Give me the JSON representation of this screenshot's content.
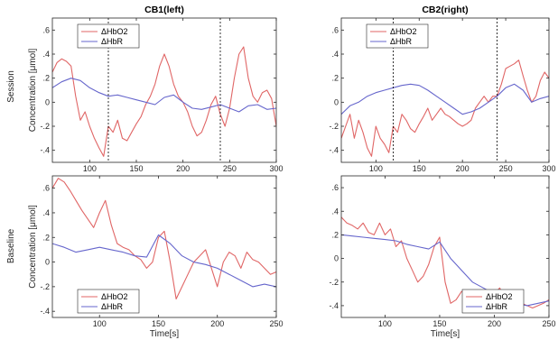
{
  "figure": {
    "row_labels": [
      "Session",
      "Baseline"
    ],
    "colors": {
      "hbo2": "#e06666",
      "hbr": "#6666cc",
      "vline": "#000000",
      "axes": "#262626"
    }
  },
  "chart_data": [
    {
      "type": "line",
      "panel": "top-left",
      "title": "CB1(left)",
      "xlabel": "",
      "ylabel": "Concentration [μmol]",
      "xlim": [
        60,
        300
      ],
      "ylim": [
        -0.5,
        0.7
      ],
      "xticks": [
        100,
        150,
        200,
        250,
        300
      ],
      "yticks": [
        -0.4,
        -0.2,
        0,
        0.2,
        0.4,
        0.6
      ],
      "vlines": [
        120,
        240
      ],
      "legend": {
        "position": "top-left",
        "entries": [
          "ΔHbO2",
          "ΔHbR"
        ]
      },
      "series": [
        {
          "name": "ΔHbO2",
          "color": "#e06666",
          "x": [
            60,
            65,
            70,
            75,
            80,
            85,
            90,
            95,
            100,
            105,
            110,
            115,
            120,
            125,
            130,
            135,
            140,
            145,
            150,
            155,
            160,
            165,
            170,
            175,
            180,
            185,
            190,
            195,
            200,
            205,
            210,
            215,
            220,
            225,
            230,
            235,
            240,
            245,
            250,
            255,
            260,
            265,
            270,
            275,
            280,
            285,
            290,
            295,
            300
          ],
          "y": [
            0.25,
            0.33,
            0.36,
            0.34,
            0.3,
            0.05,
            -0.15,
            -0.08,
            -0.2,
            -0.3,
            -0.38,
            -0.45,
            -0.2,
            -0.25,
            -0.15,
            -0.3,
            -0.32,
            -0.25,
            -0.18,
            -0.12,
            -0.02,
            0.05,
            0.15,
            0.3,
            0.4,
            0.3,
            0.15,
            0.05,
            0.0,
            -0.08,
            -0.2,
            -0.28,
            -0.25,
            -0.15,
            -0.02,
            0.05,
            -0.1,
            -0.2,
            -0.05,
            0.2,
            0.4,
            0.46,
            0.2,
            0.05,
            0.0,
            0.08,
            0.1,
            0.03,
            -0.2
          ]
        },
        {
          "name": "ΔHbR",
          "color": "#6666cc",
          "x": [
            60,
            70,
            80,
            90,
            100,
            110,
            120,
            130,
            140,
            150,
            160,
            170,
            180,
            190,
            200,
            210,
            220,
            230,
            240,
            250,
            260,
            270,
            280,
            290,
            300
          ],
          "y": [
            0.12,
            0.17,
            0.2,
            0.18,
            0.12,
            0.08,
            0.05,
            0.06,
            0.04,
            0.02,
            0.0,
            -0.02,
            0.04,
            0.06,
            0.0,
            -0.05,
            -0.06,
            -0.04,
            -0.02,
            -0.05,
            -0.08,
            -0.03,
            -0.02,
            -0.06,
            -0.05
          ]
        }
      ]
    },
    {
      "type": "line",
      "panel": "top-right",
      "title": "CB2(right)",
      "xlabel": "",
      "ylabel": "",
      "xlim": [
        60,
        300
      ],
      "ylim": [
        -0.5,
        0.7
      ],
      "xticks": [
        100,
        150,
        200,
        250,
        300
      ],
      "yticks": [
        -0.4,
        -0.2,
        0,
        0.2,
        0.4,
        0.6
      ],
      "vlines": [
        120,
        240
      ],
      "legend": {
        "position": "top-left",
        "entries": [
          "ΔHbO2",
          "ΔHbR"
        ]
      },
      "series": [
        {
          "name": "ΔHbO2",
          "color": "#e06666",
          "x": [
            60,
            65,
            70,
            75,
            80,
            85,
            90,
            95,
            100,
            105,
            110,
            115,
            120,
            125,
            130,
            135,
            140,
            145,
            150,
            155,
            160,
            165,
            170,
            175,
            180,
            185,
            190,
            195,
            200,
            205,
            210,
            215,
            220,
            225,
            230,
            235,
            240,
            245,
            250,
            255,
            260,
            265,
            270,
            275,
            280,
            285,
            290,
            295,
            300
          ],
          "y": [
            -0.3,
            -0.2,
            -0.1,
            -0.3,
            -0.15,
            -0.25,
            -0.38,
            -0.45,
            -0.2,
            -0.3,
            -0.35,
            -0.42,
            -0.2,
            -0.25,
            -0.1,
            -0.15,
            -0.22,
            -0.25,
            -0.18,
            -0.12,
            -0.05,
            -0.15,
            -0.1,
            -0.05,
            -0.1,
            -0.12,
            -0.15,
            -0.18,
            -0.2,
            -0.18,
            -0.15,
            -0.05,
            0.0,
            0.05,
            0.0,
            0.05,
            0.05,
            0.15,
            0.28,
            0.3,
            0.32,
            0.35,
            0.22,
            0.1,
            0.0,
            0.05,
            0.18,
            0.25,
            0.2
          ]
        },
        {
          "name": "ΔHbR",
          "color": "#6666cc",
          "x": [
            60,
            70,
            80,
            90,
            100,
            110,
            120,
            130,
            140,
            150,
            160,
            170,
            180,
            190,
            200,
            210,
            220,
            230,
            240,
            250,
            260,
            270,
            280,
            290,
            300
          ],
          "y": [
            -0.1,
            -0.03,
            0.0,
            0.05,
            0.08,
            0.1,
            0.12,
            0.14,
            0.15,
            0.14,
            0.1,
            0.05,
            0.0,
            -0.05,
            -0.1,
            -0.08,
            -0.05,
            0.0,
            0.05,
            0.12,
            0.15,
            0.1,
            0.0,
            0.03,
            0.05
          ]
        }
      ]
    },
    {
      "type": "line",
      "panel": "bottom-left",
      "title": "",
      "xlabel": "Time[s]",
      "ylabel": "Concentration [μmol]",
      "xlim": [
        60,
        250
      ],
      "ylim": [
        -0.45,
        0.7
      ],
      "xticks": [
        100,
        150,
        200,
        250
      ],
      "yticks": [
        -0.4,
        -0.2,
        0,
        0.2,
        0.4,
        0.6
      ],
      "vlines": [],
      "legend": {
        "position": "bottom-left",
        "entries": [
          "ΔHbO2",
          "ΔHbR"
        ]
      },
      "series": [
        {
          "name": "ΔHbO2",
          "color": "#e06666",
          "x": [
            60,
            65,
            70,
            75,
            80,
            85,
            90,
            95,
            100,
            105,
            110,
            115,
            120,
            125,
            130,
            135,
            140,
            145,
            150,
            155,
            160,
            165,
            170,
            175,
            180,
            185,
            190,
            195,
            200,
            205,
            210,
            215,
            220,
            225,
            230,
            235,
            240,
            245,
            250
          ],
          "y": [
            0.6,
            0.68,
            0.65,
            0.58,
            0.5,
            0.42,
            0.35,
            0.28,
            0.4,
            0.5,
            0.3,
            0.15,
            0.12,
            0.1,
            0.05,
            0.02,
            -0.05,
            0.0,
            0.2,
            0.25,
            0.0,
            -0.3,
            -0.2,
            -0.1,
            0.0,
            0.05,
            0.1,
            -0.05,
            -0.2,
            0.0,
            0.08,
            0.05,
            -0.05,
            0.08,
            0.02,
            0.0,
            -0.05,
            -0.1,
            -0.08
          ]
        },
        {
          "name": "ΔHbR",
          "color": "#6666cc",
          "x": [
            60,
            70,
            80,
            90,
            100,
            110,
            120,
            130,
            140,
            150,
            160,
            170,
            180,
            190,
            200,
            210,
            220,
            230,
            240,
            250
          ],
          "y": [
            0.15,
            0.12,
            0.08,
            0.1,
            0.12,
            0.1,
            0.08,
            0.05,
            0.04,
            0.22,
            0.15,
            0.05,
            0.0,
            -0.02,
            -0.05,
            -0.1,
            -0.15,
            -0.2,
            -0.18,
            -0.2
          ]
        }
      ]
    },
    {
      "type": "line",
      "panel": "bottom-right",
      "title": "",
      "xlabel": "Time[s]",
      "ylabel": "",
      "xlim": [
        60,
        250
      ],
      "ylim": [
        -0.5,
        0.7
      ],
      "xticks": [
        100,
        150,
        200,
        250
      ],
      "yticks": [
        -0.4,
        -0.2,
        0,
        0.2,
        0.4,
        0.6
      ],
      "vlines": [],
      "legend": {
        "position": "bottom-right",
        "entries": [
          "ΔHbO2",
          "ΔHbR"
        ]
      },
      "series": [
        {
          "name": "ΔHbO2",
          "color": "#e06666",
          "x": [
            60,
            65,
            70,
            75,
            80,
            85,
            90,
            95,
            100,
            105,
            110,
            115,
            120,
            125,
            130,
            135,
            140,
            145,
            150,
            155,
            160,
            165,
            170,
            175,
            180,
            185,
            190,
            195,
            200,
            205,
            210,
            215,
            220,
            225,
            230,
            235,
            240,
            245,
            250
          ],
          "y": [
            0.35,
            0.3,
            0.28,
            0.25,
            0.3,
            0.22,
            0.2,
            0.3,
            0.2,
            0.25,
            0.1,
            0.15,
            0.0,
            -0.1,
            -0.2,
            -0.15,
            -0.05,
            0.1,
            0.18,
            -0.2,
            -0.38,
            -0.35,
            -0.28,
            -0.3,
            -0.35,
            -0.4,
            -0.45,
            -0.4,
            -0.3,
            -0.25,
            -0.35,
            -0.4,
            -0.42,
            -0.38,
            -0.4,
            -0.42,
            -0.4,
            -0.38,
            -0.35
          ]
        },
        {
          "name": "ΔHbR",
          "color": "#6666cc",
          "x": [
            60,
            70,
            80,
            90,
            100,
            110,
            120,
            130,
            140,
            150,
            160,
            170,
            180,
            190,
            200,
            210,
            220,
            230,
            240,
            250
          ],
          "y": [
            0.2,
            0.19,
            0.18,
            0.17,
            0.16,
            0.15,
            0.12,
            0.1,
            0.08,
            0.14,
            0.0,
            -0.1,
            -0.2,
            -0.25,
            -0.3,
            -0.35,
            -0.38,
            -0.4,
            -0.38,
            -0.36
          ]
        }
      ]
    }
  ]
}
